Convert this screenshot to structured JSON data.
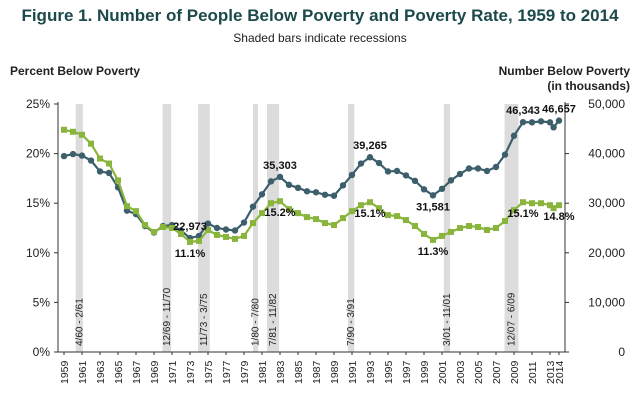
{
  "title": "Figure 1. Number of People Below Poverty and Poverty Rate, 1959 to 2014",
  "subtitle": "Shaded bars indicate recessions",
  "left_axis_title": "Percent Below Poverty",
  "right_axis_title_line1": "Number Below Poverty",
  "right_axis_title_line2": "(in thousands)",
  "chart_data": {
    "type": "line",
    "x_range": [
      1959,
      2014
    ],
    "x_tick_labels": [
      "1959",
      "1961",
      "1963",
      "1965",
      "1967",
      "1969",
      "1971",
      "1973",
      "1975",
      "1977",
      "1979",
      "1981",
      "1983",
      "1985",
      "1987",
      "1989",
      "1991",
      "1993",
      "1995",
      "1997",
      "1999",
      "2001",
      "2003",
      "2005",
      "2007",
      "2009",
      "2011",
      "2013",
      "2014"
    ],
    "left_axis": {
      "label": "Percent Below Poverty",
      "ylim": [
        0,
        25
      ],
      "ticks": [
        0,
        5,
        10,
        15,
        20,
        25
      ],
      "tick_labels": [
        "0%",
        "5%",
        "10%",
        "15%",
        "20%",
        "25%"
      ]
    },
    "right_axis": {
      "label": "Number Below Poverty (in thousands)",
      "ylim": [
        0,
        50000
      ],
      "ticks": [
        0,
        10000,
        20000,
        30000,
        40000,
        50000
      ],
      "tick_labels": [
        "0",
        "10,000",
        "20,000",
        "30,000",
        "40,000",
        "50,000"
      ]
    },
    "recessions": [
      {
        "label": "4/60 - 2/61",
        "start": 1960.3,
        "end": 1961.1
      },
      {
        "label": "12/69 - 11/70",
        "start": 1969.95,
        "end": 1970.9
      },
      {
        "label": "11/73 - 3/75",
        "start": 1973.9,
        "end": 1975.2
      },
      {
        "label": "1/80 - 7/80",
        "start": 1980.0,
        "end": 1980.55
      },
      {
        "label": "7/81 - 11/82",
        "start": 1981.55,
        "end": 1982.9
      },
      {
        "label": "7/90 - 3/91",
        "start": 1990.55,
        "end": 1991.25
      },
      {
        "label": "3/01 - 11/01",
        "start": 2001.2,
        "end": 2001.9
      },
      {
        "label": "12/07 - 6/09",
        "start": 2007.95,
        "end": 2009.5
      }
    ],
    "series": [
      {
        "name": "Number below poverty (thousands)",
        "axis": "right",
        "color": "#3c5f6b",
        "marker": "circle",
        "x": [
          1959,
          1960,
          1961,
          1962,
          1963,
          1964,
          1965,
          1966,
          1967,
          1968,
          1969,
          1970,
          1971,
          1972,
          1973,
          1974,
          1975,
          1976,
          1977,
          1978,
          1979,
          1980,
          1981,
          1982,
          1983,
          1984,
          1985,
          1986,
          1987,
          1988,
          1989,
          1990,
          1991,
          1992,
          1993,
          1994,
          1995,
          1996,
          1997,
          1998,
          1999,
          2000,
          2001,
          2002,
          2003,
          2004,
          2005,
          2006,
          2007,
          2008,
          2009,
          2010,
          2011,
          2012,
          2013,
          2013.4,
          2014
        ],
        "values": [
          39500,
          39900,
          39600,
          38600,
          36400,
          36100,
          33200,
          28500,
          27800,
          25400,
          24100,
          25400,
          25600,
          24500,
          22973,
          23400,
          25900,
          25000,
          24700,
          24500,
          26100,
          29300,
          31800,
          34400,
          35303,
          33700,
          33100,
          32400,
          32200,
          31700,
          31500,
          33600,
          35700,
          38000,
          39265,
          38100,
          36400,
          36500,
          35600,
          34500,
          32800,
          31581,
          32900,
          34600,
          35900,
          37000,
          37000,
          36500,
          37300,
          39800,
          43600,
          46343,
          46300,
          46500,
          46300,
          45300,
          46657
        ]
      },
      {
        "name": "Poverty rate (%)",
        "axis": "left",
        "color": "#8ab53c",
        "marker": "square",
        "x": [
          1959,
          1960,
          1961,
          1962,
          1963,
          1964,
          1965,
          1966,
          1967,
          1968,
          1969,
          1970,
          1971,
          1972,
          1973,
          1974,
          1975,
          1976,
          1977,
          1978,
          1979,
          1980,
          1981,
          1982,
          1983,
          1984,
          1985,
          1986,
          1987,
          1988,
          1989,
          1990,
          1991,
          1992,
          1993,
          1994,
          1995,
          1996,
          1997,
          1998,
          1999,
          2000,
          2001,
          2002,
          2003,
          2004,
          2005,
          2006,
          2007,
          2008,
          2009,
          2010,
          2011,
          2012,
          2013,
          2013.4,
          2014
        ],
        "values": [
          22.4,
          22.2,
          21.9,
          21.0,
          19.5,
          19.0,
          17.3,
          14.7,
          14.2,
          12.8,
          12.1,
          12.6,
          12.5,
          11.9,
          11.1,
          11.2,
          12.3,
          11.8,
          11.6,
          11.4,
          11.7,
          13.0,
          14.0,
          15.0,
          15.2,
          14.4,
          14.0,
          13.6,
          13.4,
          13.0,
          12.8,
          13.5,
          14.2,
          14.8,
          15.1,
          14.5,
          13.8,
          13.7,
          13.3,
          12.7,
          11.9,
          11.3,
          11.7,
          12.1,
          12.5,
          12.7,
          12.6,
          12.3,
          12.5,
          13.2,
          14.3,
          15.1,
          15.0,
          15.0,
          14.8,
          14.5,
          14.8
        ]
      }
    ],
    "annotations": [
      {
        "text": "22,973",
        "x": 1973,
        "series": 0,
        "pos": "above"
      },
      {
        "text": "35,303",
        "x": 1983,
        "series": 0,
        "pos": "above"
      },
      {
        "text": "39,265",
        "x": 1993,
        "series": 0,
        "pos": "above"
      },
      {
        "text": "31,581",
        "x": 2000,
        "series": 0,
        "pos": "below"
      },
      {
        "text": "46,343",
        "x": 2010,
        "series": 0,
        "pos": "above"
      },
      {
        "text": "46,657",
        "x": 2014,
        "series": 0,
        "pos": "above"
      },
      {
        "text": "11.1%",
        "x": 1973,
        "series": 1,
        "pos": "below"
      },
      {
        "text": "15.2%",
        "x": 1983,
        "series": 1,
        "pos": "below"
      },
      {
        "text": "15.1%",
        "x": 1993,
        "series": 1,
        "pos": "below"
      },
      {
        "text": "11.3%",
        "x": 2000,
        "series": 1,
        "pos": "below"
      },
      {
        "text": "15.1%",
        "x": 2010,
        "series": 1,
        "pos": "below"
      },
      {
        "text": "14.8%",
        "x": 2014,
        "series": 1,
        "pos": "below"
      }
    ]
  }
}
